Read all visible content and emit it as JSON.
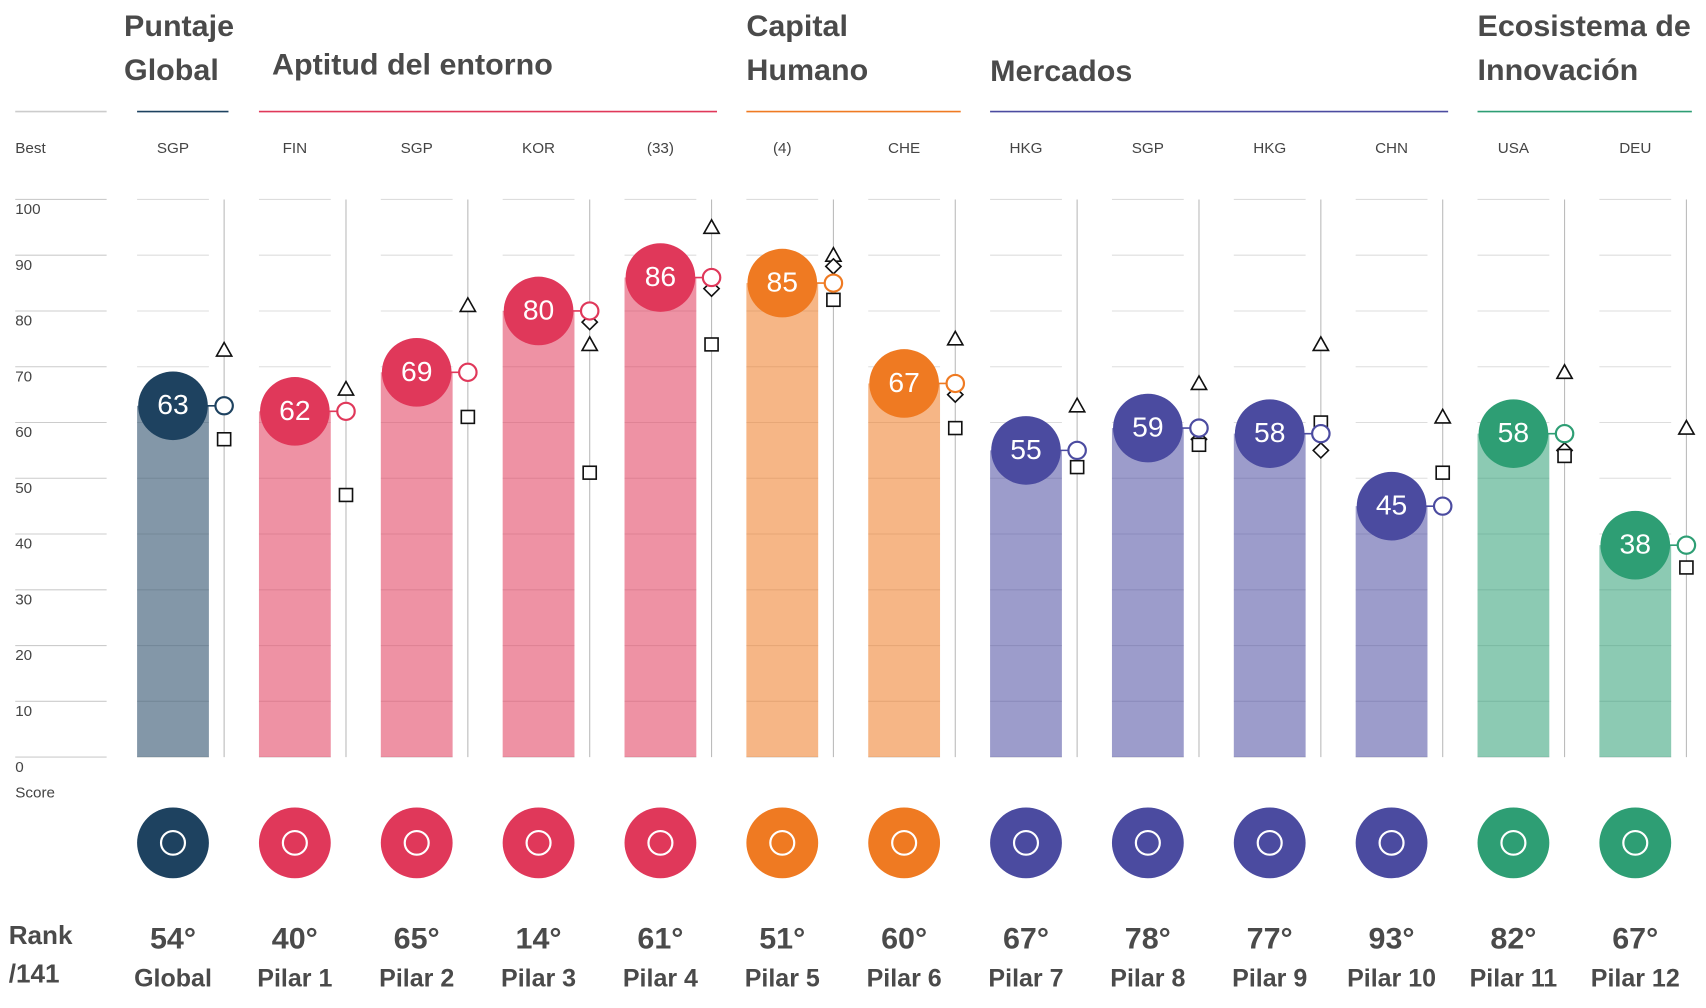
{
  "chart_data": {
    "type": "bar",
    "groups": [
      {
        "lines": [
          "Puntaje",
          "Global"
        ],
        "color": "#1e4260"
      },
      {
        "lines": [
          "Aptitud del entorno"
        ],
        "color": "#e0385a"
      },
      {
        "lines": [
          "Capital",
          "Humano"
        ],
        "color": "#ef7a22"
      },
      {
        "lines": [
          "Mercados"
        ],
        "color": "#4b4ba0"
      },
      {
        "lines": [
          "Ecosistema de",
          "Innovación"
        ],
        "color": "#2e9e74"
      }
    ],
    "best_label": "Best",
    "score_label": "Score",
    "rank_label": [
      "Rank",
      "/141"
    ],
    "categories": [
      "Global",
      "Pilar 1",
      "Pilar 2",
      "Pilar 3",
      "Pilar 4",
      "Pilar 5",
      "Pilar 6",
      "Pilar 7",
      "Pilar 8",
      "Pilar 9",
      "Pilar 10",
      "Pilar 11",
      "Pilar 12"
    ],
    "best": [
      "SGP",
      "FIN",
      "SGP",
      "KOR",
      "(33)",
      "(4)",
      "CHE",
      "HKG",
      "SGP",
      "HKG",
      "CHN",
      "USA",
      "DEU"
    ],
    "ranks": [
      "54°",
      "40°",
      "65°",
      "14°",
      "61°",
      "51°",
      "60°",
      "67°",
      "78°",
      "77°",
      "93°",
      "82°",
      "67°"
    ],
    "colors": [
      "#1e4260",
      "#e0385a",
      "#e0385a",
      "#e0385a",
      "#e0385a",
      "#ef7a22",
      "#ef7a22",
      "#4b4ba0",
      "#4b4ba0",
      "#4b4ba0",
      "#4b4ba0",
      "#2e9e74",
      "#2e9e74"
    ],
    "values": [
      63,
      62,
      69,
      80,
      86,
      85,
      67,
      55,
      59,
      58,
      45,
      58,
      38
    ],
    "markers": [
      {
        "marker": "triangle",
        "values": [
          73,
          66,
          81,
          74,
          95,
          90,
          75,
          63,
          67,
          74,
          61,
          69,
          59
        ]
      },
      {
        "marker": "diamond",
        "values": [
          null,
          null,
          null,
          78,
          84,
          88,
          65,
          null,
          57,
          55,
          null,
          55,
          null
        ]
      },
      {
        "marker": "square",
        "values": [
          57,
          47,
          61,
          51,
          74,
          82,
          59,
          52,
          56,
          60,
          51,
          54,
          34
        ]
      }
    ],
    "ylim": [
      0,
      100
    ],
    "yticks": [
      0,
      10,
      20,
      30,
      40,
      50,
      60,
      70,
      80,
      90,
      100
    ]
  }
}
